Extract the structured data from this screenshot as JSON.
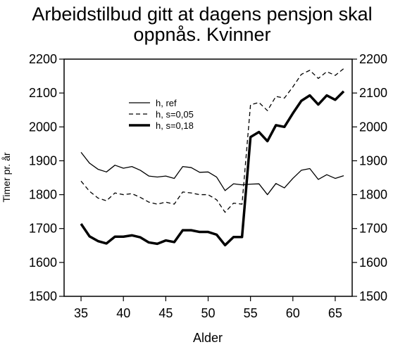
{
  "chart_data": {
    "type": "line",
    "title_line1": "Arbeidstilbud gitt at dagens pensjon skal",
    "title_line2": "oppnås. Kvinner",
    "xlabel": "Alder",
    "ylabel": "Timer pr. år",
    "xlim": [
      33,
      67
    ],
    "ylim": [
      1500,
      2200
    ],
    "x_ticks": [
      35,
      40,
      45,
      50,
      55,
      60,
      65
    ],
    "y_ticks": [
      1500,
      1600,
      1700,
      1800,
      1900,
      2000,
      2100,
      2200
    ],
    "grid": false,
    "legend_position": "upper-left-inside",
    "x": [
      35,
      36,
      37,
      38,
      39,
      40,
      41,
      42,
      43,
      44,
      45,
      46,
      47,
      48,
      49,
      50,
      51,
      52,
      53,
      54,
      55,
      56,
      57,
      58,
      59,
      60,
      61,
      62,
      63,
      64,
      65,
      66
    ],
    "series": [
      {
        "name": "h, ref",
        "style": "solid-thin",
        "values": [
          1925,
          1893,
          1875,
          1867,
          1887,
          1878,
          1883,
          1872,
          1855,
          1852,
          1855,
          1848,
          1883,
          1880,
          1866,
          1867,
          1852,
          1812,
          1832,
          1829,
          1831,
          1832,
          1800,
          1833,
          1820,
          1848,
          1872,
          1877,
          1845,
          1859,
          1848,
          1856
        ]
      },
      {
        "name": "h, s=0,05",
        "style": "dashed",
        "values": [
          1840,
          1810,
          1790,
          1782,
          1805,
          1800,
          1803,
          1792,
          1778,
          1772,
          1778,
          1772,
          1808,
          1805,
          1800,
          1800,
          1785,
          1748,
          1775,
          1772,
          2065,
          2072,
          2048,
          2090,
          2085,
          2118,
          2155,
          2167,
          2143,
          2163,
          2152,
          2172
        ]
      },
      {
        "name": "h, s=0,18",
        "style": "solid-thick",
        "values": [
          1714,
          1677,
          1663,
          1656,
          1676,
          1676,
          1680,
          1674,
          1659,
          1655,
          1665,
          1660,
          1695,
          1695,
          1690,
          1690,
          1682,
          1651,
          1675,
          1675,
          1970,
          1985,
          1958,
          2005,
          2000,
          2040,
          2077,
          2093,
          2066,
          2093,
          2080,
          2105
        ]
      }
    ]
  }
}
